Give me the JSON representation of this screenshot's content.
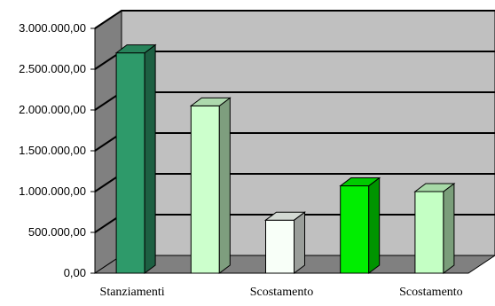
{
  "chart_data": {
    "type": "bar",
    "categories": [
      "Stanziamenti",
      "",
      "Scostamento",
      "",
      "Scostamento"
    ],
    "values": [
      2700000,
      2050000,
      650000,
      1070000,
      1000000
    ],
    "ylim": [
      0,
      3000000
    ],
    "yticks": [
      "0,00",
      "500.000,00",
      "1.000.000,00",
      "1.500.000,00",
      "2.000.000,00",
      "2.500.000,00",
      "3.000.000,00"
    ],
    "grid": true,
    "legend": "none",
    "colors": {
      "bars": [
        "#2e9a6a",
        "#ccffcc",
        "#f8fff8",
        "#00ee00",
        "#c4ffc4"
      ],
      "wall": "#c0c0c0",
      "side_wall": "#808080",
      "floor": "#808080"
    }
  }
}
